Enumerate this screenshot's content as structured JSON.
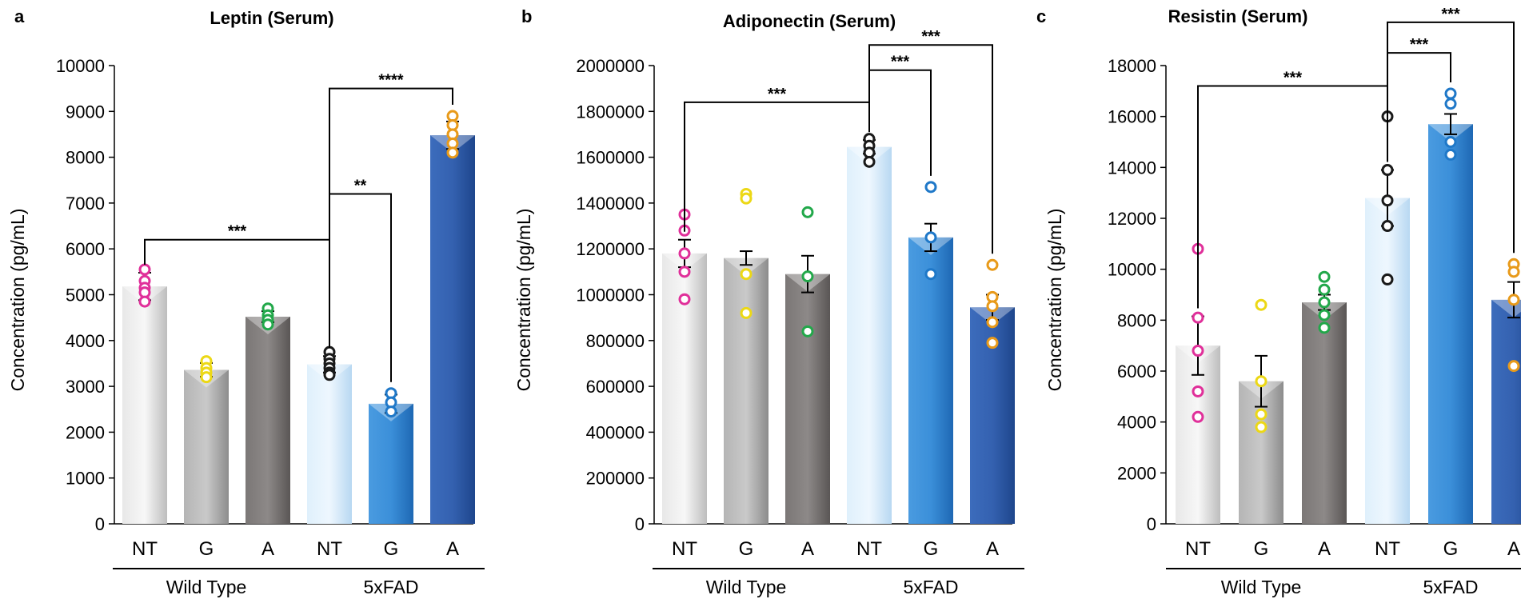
{
  "chart_data": [
    {
      "type": "bar",
      "panel": "a",
      "title": "Leptin (Serum)",
      "ylabel": "Concentration (pg/mL)",
      "ylim": [
        0,
        10000
      ],
      "yticks": [
        "0",
        "1000",
        "2000",
        "3000",
        "4000",
        "5000",
        "6000",
        "7000",
        "8000",
        "9000",
        "10000"
      ],
      "categories": [
        "NT",
        "G",
        "A",
        "NT",
        "G",
        "A"
      ],
      "groups": [
        {
          "label": "Wild Type",
          "from": 0,
          "to": 2
        },
        {
          "label": "5xFAD",
          "from": 3,
          "to": 5
        }
      ],
      "values": [
        5180,
        3360,
        4520,
        3480,
        2620,
        8480
      ],
      "errors": [
        300,
        150,
        120,
        180,
        200,
        300
      ],
      "points": [
        [
          5550,
          5300,
          5150,
          5050,
          4850
        ],
        [
          3550,
          3400,
          3300,
          3200
        ],
        [
          4700,
          4550,
          4450,
          4350
        ],
        [
          3750,
          3600,
          3500,
          3400,
          3300,
          3250
        ],
        [
          2850,
          2650,
          2450
        ],
        [
          8900,
          8700,
          8500,
          8300,
          8100
        ]
      ],
      "point_colors": [
        "#e0309a",
        "#ecd816",
        "#22a84a",
        "#1a1a1a",
        "#1f78c8",
        "#e89a1a"
      ],
      "significance": [
        {
          "from": 0,
          "to": 3,
          "label": "***",
          "level": 6200
        },
        {
          "from": 3,
          "to": 4,
          "label": "**",
          "level": 7200
        },
        {
          "from": 3,
          "to": 5,
          "label": "****",
          "level": 9500
        }
      ]
    },
    {
      "type": "bar",
      "panel": "b",
      "title": "Adiponectin (Serum)",
      "ylabel": "Concentration (pg/mL)",
      "ylim": [
        0,
        2000000
      ],
      "yticks": [
        "0",
        "200000",
        "400000",
        "600000",
        "800000",
        "1000000",
        "1200000",
        "1400000",
        "1600000",
        "1800000",
        "2000000"
      ],
      "categories": [
        "NT",
        "G",
        "A",
        "NT",
        "G",
        "A"
      ],
      "groups": [
        {
          "label": "Wild Type",
          "from": 0,
          "to": 2
        },
        {
          "label": "5xFAD",
          "from": 3,
          "to": 5
        }
      ],
      "values": [
        1180000,
        1160000,
        1090000,
        1645000,
        1250000,
        945000
      ],
      "errors": [
        60000,
        30000,
        80000,
        30000,
        60000,
        55000
      ],
      "points": [
        [
          1350000,
          1280000,
          1180000,
          1100000,
          980000
        ],
        [
          1440000,
          1420000,
          1090000,
          920000
        ],
        [
          1360000,
          1080000,
          840000
        ],
        [
          1680000,
          1650000,
          1620000,
          1580000
        ],
        [
          1470000,
          1250000,
          1090000
        ],
        [
          1130000,
          990000,
          950000,
          880000,
          790000
        ]
      ],
      "point_colors": [
        "#e0309a",
        "#ecd816",
        "#22a84a",
        "#1a1a1a",
        "#1f78c8",
        "#e89a1a"
      ],
      "significance": [
        {
          "from": 0,
          "to": 3,
          "label": "***",
          "level": 1840000
        },
        {
          "from": 3,
          "to": 4,
          "label": "***",
          "level": 1980000
        },
        {
          "from": 3,
          "to": 5,
          "label": "***",
          "level": 2090000
        }
      ]
    },
    {
      "type": "bar",
      "panel": "c",
      "title": "Resistin (Serum)",
      "ylabel": "Concentration (pg/mL)",
      "ylim": [
        0,
        18000
      ],
      "yticks": [
        "0",
        "2000",
        "4000",
        "6000",
        "8000",
        "10000",
        "12000",
        "14000",
        "16000",
        "18000"
      ],
      "categories": [
        "NT",
        "G",
        "A",
        "NT",
        "G",
        "A"
      ],
      "groups": [
        {
          "label": "Wild Type",
          "from": 0,
          "to": 2
        },
        {
          "label": "5xFAD",
          "from": 3,
          "to": 5
        }
      ],
      "values": [
        7000,
        5600,
        8700,
        12800,
        15700,
        8800
      ],
      "errors": [
        1150,
        1000,
        300,
        1100,
        400,
        700
      ],
      "points": [
        [
          10800,
          8100,
          6800,
          5200,
          4200
        ],
        [
          8600,
          5600,
          4300,
          3800
        ],
        [
          9700,
          9200,
          8700,
          8200,
          7700
        ],
        [
          16000,
          13900,
          12700,
          11700,
          9600
        ],
        [
          16900,
          16500,
          15000,
          14500
        ],
        [
          10200,
          9900,
          8800,
          6200
        ]
      ],
      "point_colors": [
        "#e0309a",
        "#ecd816",
        "#22a84a",
        "#1a1a1a",
        "#1f78c8",
        "#e89a1a"
      ],
      "significance": [
        {
          "from": 0,
          "to": 3,
          "label": "***",
          "level": 17200
        },
        {
          "from": 3,
          "to": 4,
          "label": "***",
          "level": 18500
        },
        {
          "from": 3,
          "to": 5,
          "label": "***",
          "level": 19700
        }
      ]
    }
  ],
  "bar_colors": [
    "#cfcfcf",
    "#9e9e9e",
    "#6e6a68",
    "#cfe6f8",
    "#2f86d4",
    "#2d5aa8"
  ]
}
